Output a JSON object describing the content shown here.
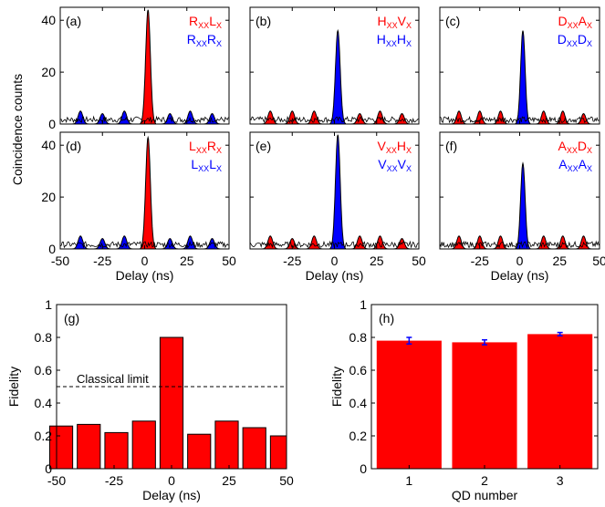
{
  "colors": {
    "red": "#ff0000",
    "blue": "#0000ff",
    "black": "#000000"
  },
  "chart_data": [
    {
      "type": "area",
      "panel": "(a)",
      "ylabel": "Coincidence counts",
      "xlim": [
        -50,
        50
      ],
      "ylim": [
        0,
        45
      ],
      "yticks": [
        "0",
        "20",
        "40"
      ],
      "series": [
        {
          "name": "RxxLx",
          "label": {
            "main1": "R",
            "sub1": "XX",
            "main2": "L",
            "sub2": "X"
          },
          "color": "red",
          "peaks": [
            {
              "x": 2,
              "y": 44
            }
          ]
        },
        {
          "name": "RxxRx",
          "label": {
            "main1": "R",
            "sub1": "XX",
            "main2": "R",
            "sub2": "X"
          },
          "color": "blue",
          "peaks": [
            {
              "x": -38,
              "y": 5
            },
            {
              "x": -25,
              "y": 4
            },
            {
              "x": -12,
              "y": 5
            },
            {
              "x": 15,
              "y": 4
            },
            {
              "x": 27,
              "y": 5
            },
            {
              "x": 40,
              "y": 4
            }
          ]
        }
      ]
    },
    {
      "type": "area",
      "panel": "(b)",
      "xlim": [
        -50,
        50
      ],
      "ylim": [
        0,
        45
      ],
      "series": [
        {
          "name": "HxxVx",
          "label": {
            "main1": "H",
            "sub1": "XX",
            "main2": "V",
            "sub2": "X"
          },
          "color": "red",
          "peaks": [
            {
              "x": -38,
              "y": 5
            },
            {
              "x": -25,
              "y": 5
            },
            {
              "x": -12,
              "y": 5
            },
            {
              "x": 15,
              "y": 4
            },
            {
              "x": 27,
              "y": 5
            },
            {
              "x": 40,
              "y": 4
            }
          ]
        },
        {
          "name": "HxxHx",
          "label": {
            "main1": "H",
            "sub1": "XX",
            "main2": "H",
            "sub2": "X"
          },
          "color": "blue",
          "peaks": [
            {
              "x": 2,
              "y": 36
            }
          ]
        }
      ]
    },
    {
      "type": "area",
      "panel": "(c)",
      "xlim": [
        -50,
        50
      ],
      "ylim": [
        0,
        45
      ],
      "series": [
        {
          "name": "DxxAx",
          "label": {
            "main1": "D",
            "sub1": "XX",
            "main2": "A",
            "sub2": "X"
          },
          "color": "red",
          "peaks": [
            {
              "x": -38,
              "y": 5
            },
            {
              "x": -25,
              "y": 5
            },
            {
              "x": -12,
              "y": 5
            },
            {
              "x": 15,
              "y": 5
            },
            {
              "x": 27,
              "y": 5
            },
            {
              "x": 40,
              "y": 4
            }
          ]
        },
        {
          "name": "DxxDx",
          "label": {
            "main1": "D",
            "sub1": "XX",
            "main2": "D",
            "sub2": "X"
          },
          "color": "blue",
          "peaks": [
            {
              "x": 2,
              "y": 36
            }
          ]
        }
      ]
    },
    {
      "type": "area",
      "panel": "(d)",
      "xlabel": "Delay (ns)",
      "xlim": [
        -50,
        50
      ],
      "ylim": [
        0,
        45
      ],
      "yticks": [
        "0",
        "20",
        "40"
      ],
      "xticks": [
        "-50",
        "-25",
        "0",
        "25",
        "50"
      ],
      "series": [
        {
          "name": "LxxRx",
          "label": {
            "main1": "L",
            "sub1": "XX",
            "main2": "R",
            "sub2": "X"
          },
          "color": "red",
          "peaks": [
            {
              "x": 2,
              "y": 43
            }
          ]
        },
        {
          "name": "LxxLx",
          "label": {
            "main1": "L",
            "sub1": "XX",
            "main2": "L",
            "sub2": "X"
          },
          "color": "blue",
          "peaks": [
            {
              "x": -38,
              "y": 5
            },
            {
              "x": -25,
              "y": 4
            },
            {
              "x": -12,
              "y": 5
            },
            {
              "x": 15,
              "y": 4
            },
            {
              "x": 27,
              "y": 5
            },
            {
              "x": 40,
              "y": 4
            }
          ]
        }
      ]
    },
    {
      "type": "area",
      "panel": "(e)",
      "xlabel": "Delay (ns)",
      "xlim": [
        -50,
        50
      ],
      "ylim": [
        0,
        45
      ],
      "xticks": [
        "-25",
        "0",
        "25",
        "50"
      ],
      "series": [
        {
          "name": "VxxHx",
          "label": {
            "main1": "V",
            "sub1": "XX",
            "main2": "H",
            "sub2": "X"
          },
          "color": "red",
          "peaks": [
            {
              "x": -38,
              "y": 5
            },
            {
              "x": -25,
              "y": 4
            },
            {
              "x": -12,
              "y": 5
            },
            {
              "x": 15,
              "y": 5
            },
            {
              "x": 27,
              "y": 5
            },
            {
              "x": 40,
              "y": 4
            }
          ]
        },
        {
          "name": "VxxVx",
          "label": {
            "main1": "V",
            "sub1": "XX",
            "main2": "V",
            "sub2": "X"
          },
          "color": "blue",
          "peaks": [
            {
              "x": 2,
              "y": 44
            }
          ]
        }
      ]
    },
    {
      "type": "area",
      "panel": "(f)",
      "xlabel": "Delay (ns)",
      "xlim": [
        -50,
        50
      ],
      "ylim": [
        0,
        45
      ],
      "xticks": [
        "-25",
        "0",
        "25",
        "50"
      ],
      "series": [
        {
          "name": "AxxDx",
          "label": {
            "main1": "A",
            "sub1": "XX",
            "main2": "D",
            "sub2": "X"
          },
          "color": "red",
          "peaks": [
            {
              "x": -38,
              "y": 5
            },
            {
              "x": -25,
              "y": 5
            },
            {
              "x": -12,
              "y": 5
            },
            {
              "x": 15,
              "y": 5
            },
            {
              "x": 27,
              "y": 5
            },
            {
              "x": 40,
              "y": 5
            }
          ]
        },
        {
          "name": "AxxAx",
          "label": {
            "main1": "A",
            "sub1": "XX",
            "main2": "A",
            "sub2": "X"
          },
          "color": "blue",
          "peaks": [
            {
              "x": 2,
              "y": 33
            }
          ]
        }
      ]
    },
    {
      "type": "bar",
      "panel": "(g)",
      "xlabel": "Delay (ns)",
      "ylabel": "Fidelity",
      "xlim": [
        -50,
        50
      ],
      "ylim": [
        0,
        1
      ],
      "xticks": [
        "-50",
        "-25",
        "0",
        "25",
        "50"
      ],
      "yticks": [
        "0",
        "0.2",
        "0.4",
        "0.6",
        "0.8",
        "1"
      ],
      "x": [
        -48,
        -36,
        -24,
        -12,
        0,
        12,
        24,
        36,
        48
      ],
      "values": [
        0.26,
        0.27,
        0.22,
        0.29,
        0.8,
        0.21,
        0.29,
        0.25,
        0.2
      ],
      "reference_line": {
        "y": 0.5,
        "label": "Classical limit"
      }
    },
    {
      "type": "bar",
      "panel": "(h)",
      "xlabel": "QD number",
      "ylabel": "Fidelity",
      "ylim": [
        0,
        1
      ],
      "categories": [
        "1",
        "2",
        "3"
      ],
      "yticks": [
        "0",
        "0.2",
        "0.4",
        "0.6",
        "0.8",
        "1"
      ],
      "values": [
        0.78,
        0.77,
        0.82
      ],
      "errors": [
        0.02,
        0.015,
        0.01
      ]
    }
  ]
}
